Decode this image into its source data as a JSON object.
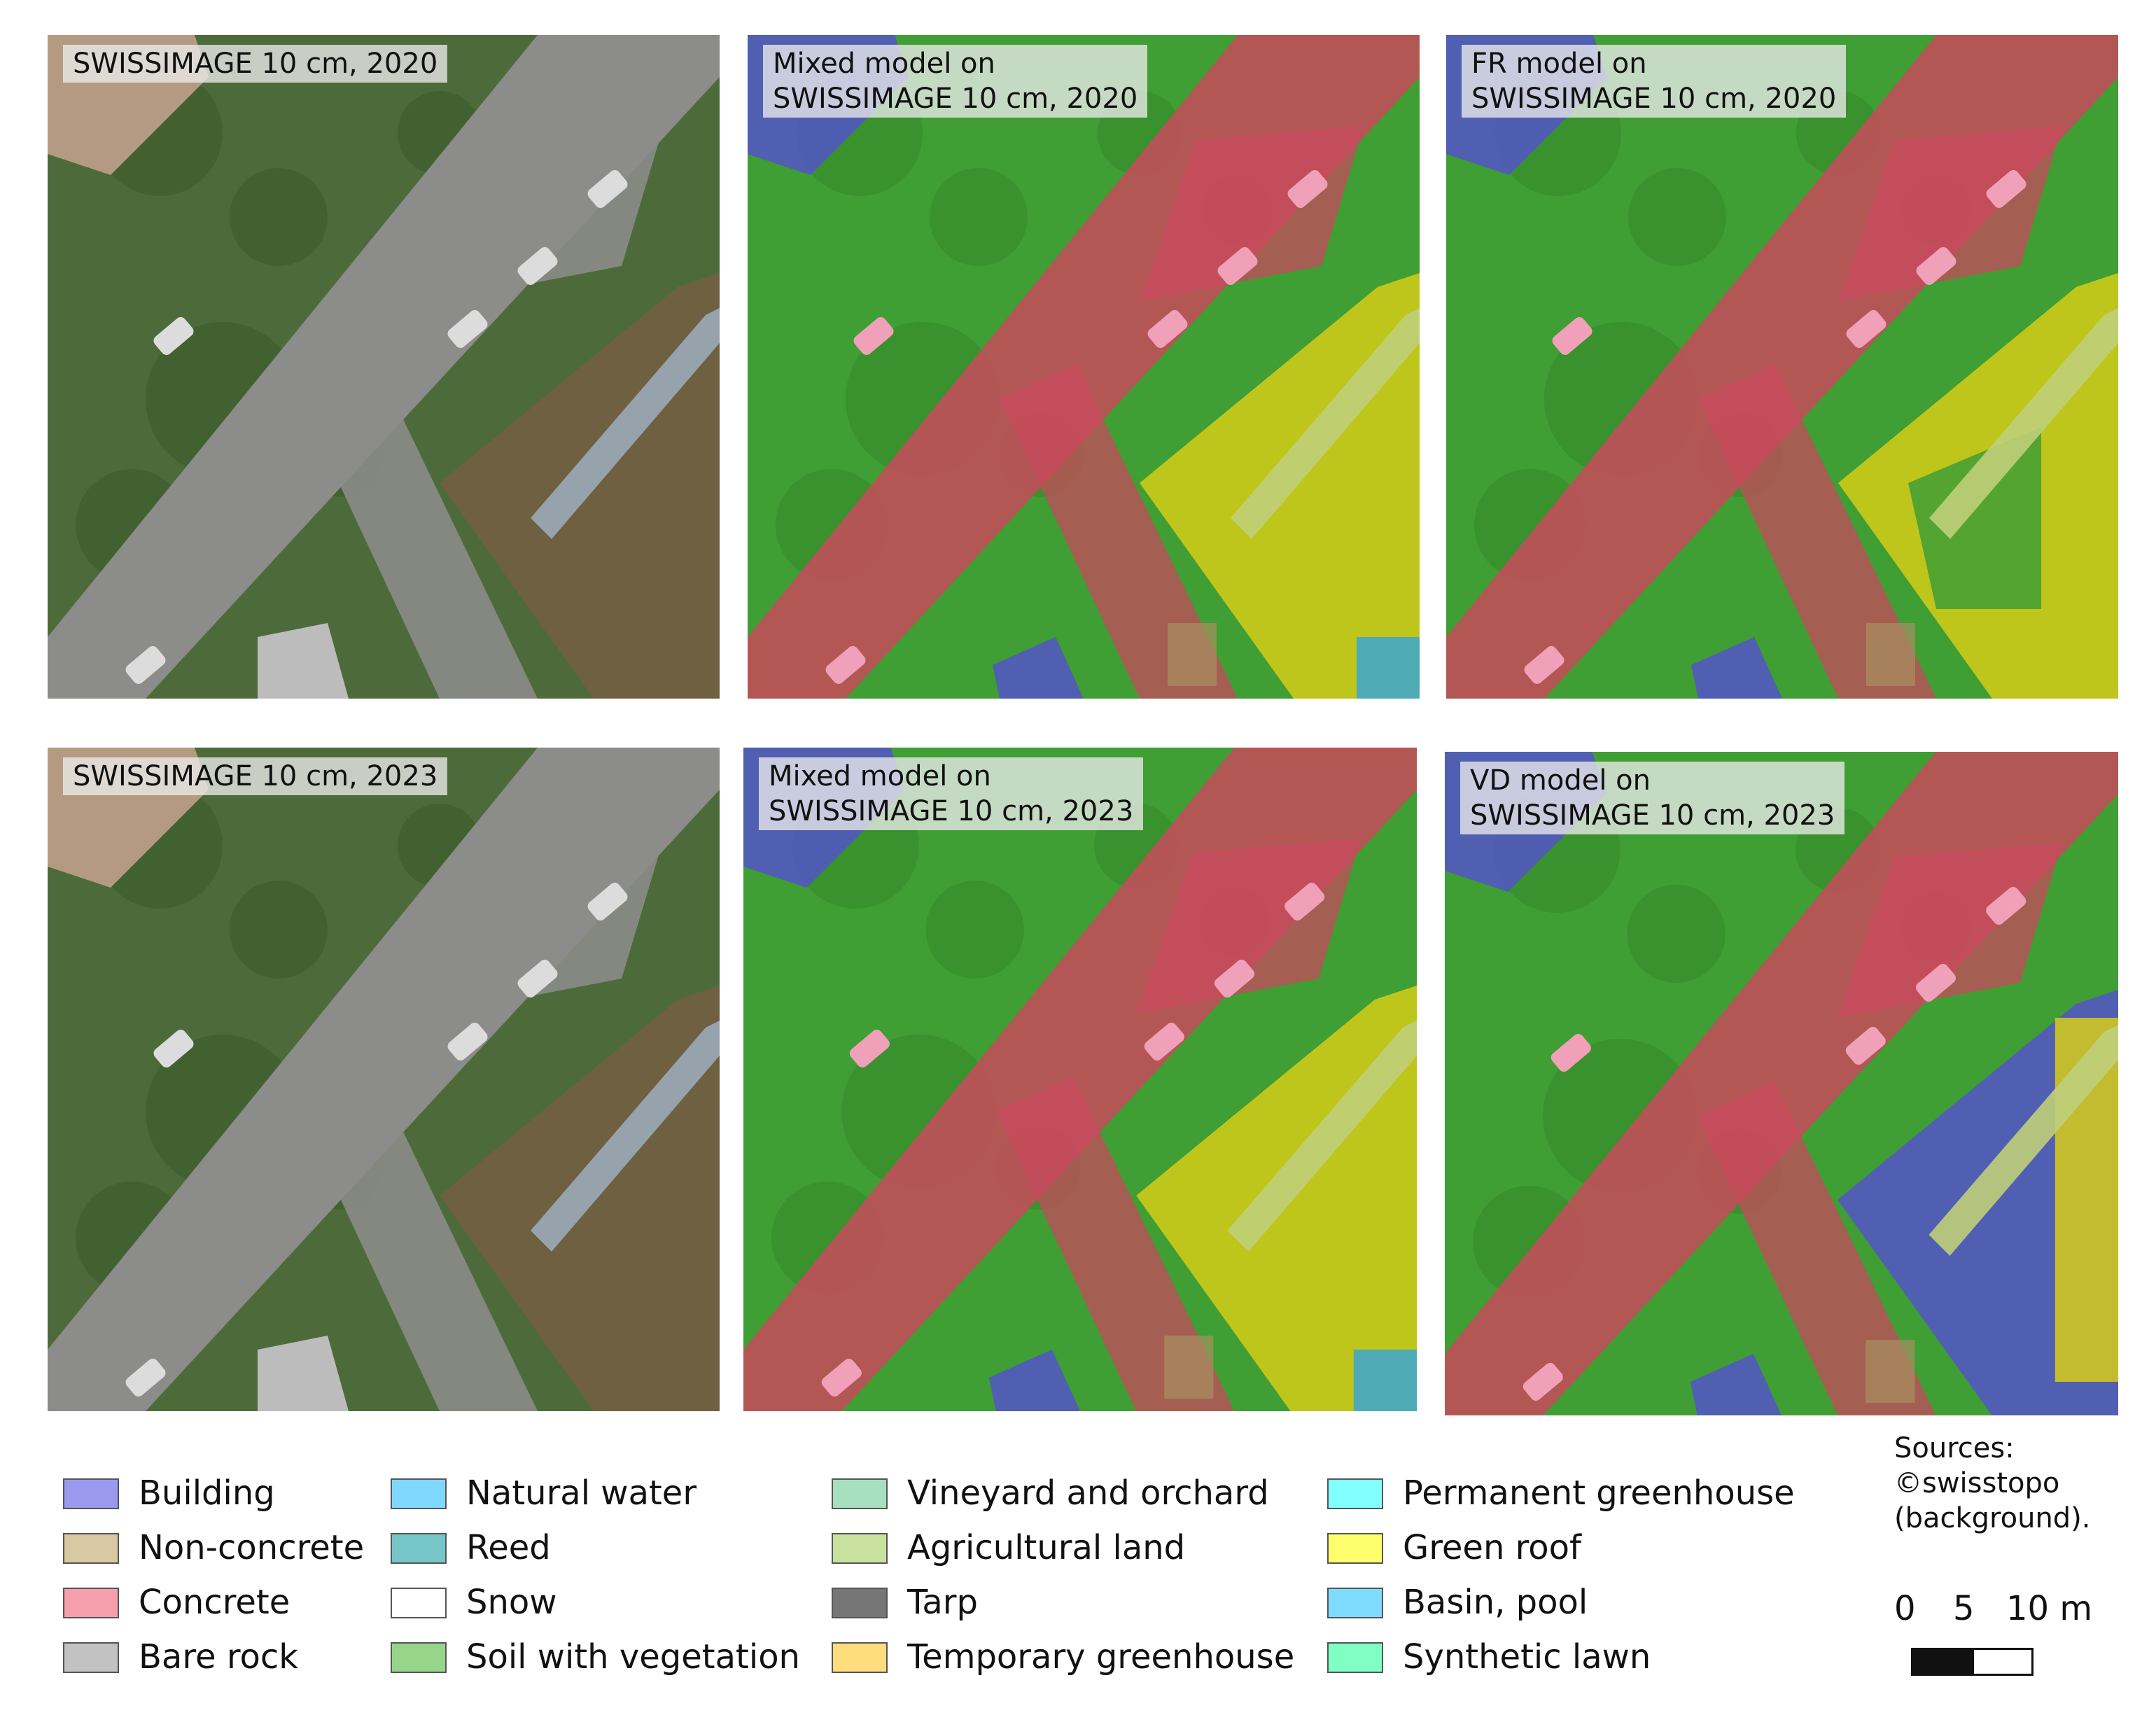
{
  "panels": [
    {
      "id": "p11",
      "caption": "SWISSIMAGE 10 cm, 2020",
      "kind": "photo",
      "year": 2020
    },
    {
      "id": "p12",
      "caption": "Mixed model on\nSWISSIMAGE 10 cm, 2020",
      "kind": "seg-mixed",
      "year": 2020
    },
    {
      "id": "p13",
      "caption": "FR model on\nSWISSIMAGE 10 cm, 2020",
      "kind": "seg-fr",
      "year": 2020
    },
    {
      "id": "p21",
      "caption": "SWISSIMAGE 10 cm, 2023",
      "kind": "photo",
      "year": 2023
    },
    {
      "id": "p22",
      "caption": "Mixed model on\nSWISSIMAGE 10 cm, 2023",
      "kind": "seg-mixed",
      "year": 2023
    },
    {
      "id": "p23",
      "caption": "VD model on\nSWISSIMAGE 10 cm, 2023",
      "kind": "seg-vd",
      "year": 2023
    }
  ],
  "legend": {
    "columns": [
      [
        {
          "label": "Building",
          "color": "#9b9af0"
        },
        {
          "label": "Non-concrete",
          "color": "#d8c9a3"
        },
        {
          "label": "Concrete",
          "color": "#f59fac"
        },
        {
          "label": "Bare rock",
          "color": "#c2c2c2"
        }
      ],
      [
        {
          "label": "Natural water",
          "color": "#80d8ff"
        },
        {
          "label": "Reed",
          "color": "#76c6c7"
        },
        {
          "label": "Snow",
          "color": "#ffffff"
        },
        {
          "label": "Soil with vegetation",
          "color": "#97d58a"
        }
      ],
      [
        {
          "label": "Vineyard and orchard",
          "color": "#a7dfc1"
        },
        {
          "label": "Agricultural land",
          "color": "#c8e29e"
        },
        {
          "label": "Tarp",
          "color": "#767676"
        },
        {
          "label": "Temporary greenhouse",
          "color": "#ffdc7d"
        }
      ],
      [
        {
          "label": "Permanent greenhouse",
          "color": "#82ffff"
        },
        {
          "label": "Green roof",
          "color": "#ffff6e"
        },
        {
          "label": "Basin, pool",
          "color": "#80dcff"
        },
        {
          "label": "Synthetic lawn",
          "color": "#80ffc5"
        }
      ]
    ]
  },
  "sources": {
    "line1": "Sources:",
    "line2": "©swisstopo",
    "line3": "(background)."
  },
  "scale_bar": {
    "ticks": [
      "0",
      "5",
      "10 m"
    ]
  },
  "colors": {
    "seg_building": "#5454c8",
    "seg_concrete": "#c84a5c",
    "seg_vegetation": "#3f9e34",
    "seg_green_roof": "#d6cc17",
    "seg_basin": "#3aa6d0",
    "seg_non_concrete": "#a89060",
    "photo_vegetation": "#4d6b3a",
    "photo_road": "#8c8c8a",
    "photo_roof": "#6e6040",
    "photo_house": "#b59a82"
  }
}
